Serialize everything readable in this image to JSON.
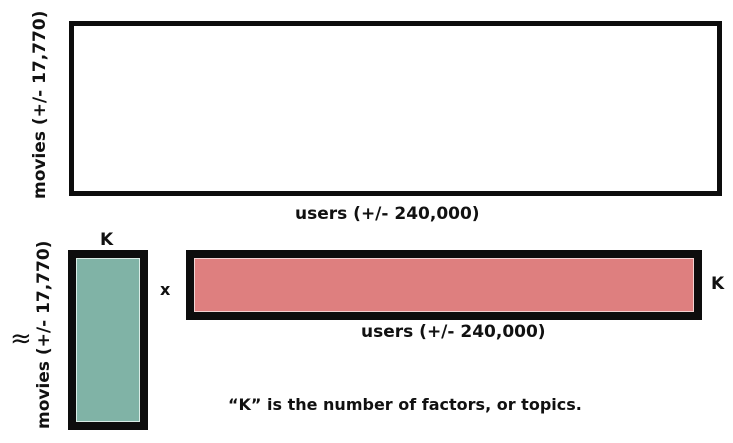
{
  "colors": {
    "border": "#0d0d0d",
    "left_matrix_fill": "#80b3a6",
    "right_matrix_fill": "#de7f7f"
  },
  "top_matrix": {
    "row_label": "movies (+/- 17,770)",
    "column_label": "users (+/- 240,000)"
  },
  "approx_symbol": "≈",
  "left_factor": {
    "column_label": "K",
    "row_label": "movies (+/- 17,770)"
  },
  "multiply_symbol": "x",
  "right_factor": {
    "row_label": "K",
    "column_label": "users (+/- 240,000)"
  },
  "caption": "“K” is the number of factors, or topics."
}
